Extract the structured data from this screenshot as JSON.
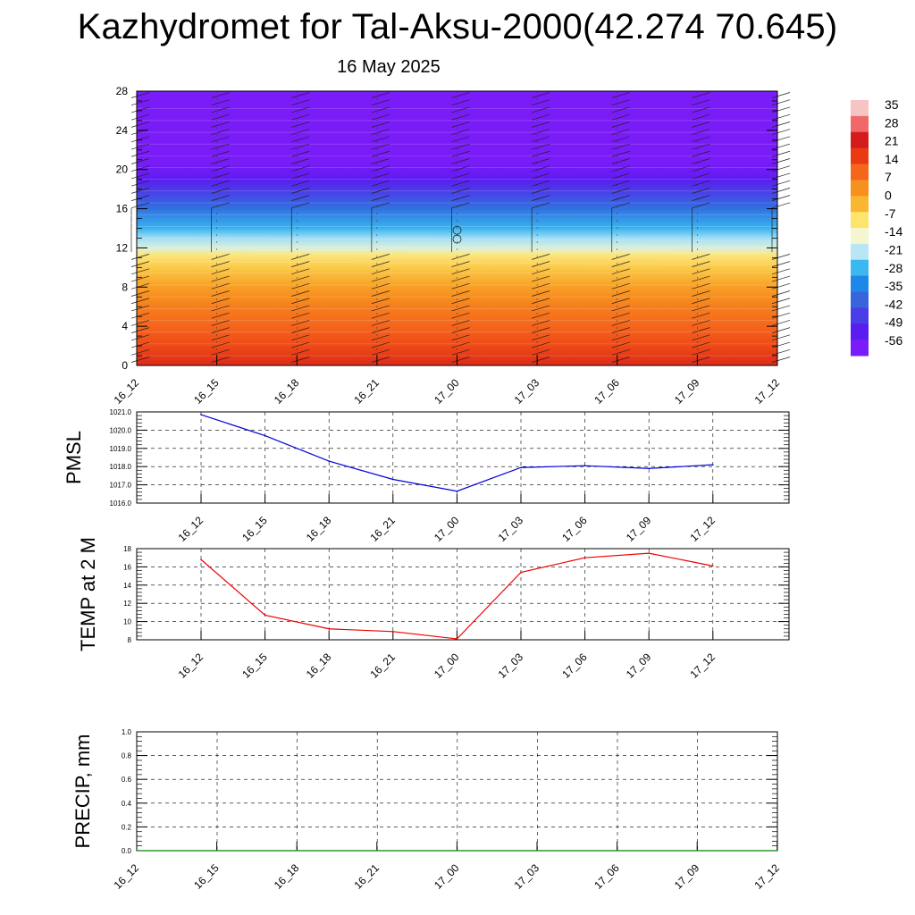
{
  "header": {
    "title": "Kazhydromet for Tal-Aksu-2000(42.274 70.645)",
    "subtitle": "16 May 2025"
  },
  "chart_data": [
    {
      "type": "heatmap",
      "title": "",
      "x_labels": [
        "16_12",
        "16_15",
        "16_18",
        "16_21",
        "17_00",
        "17_03",
        "17_06",
        "17_09",
        "17_12"
      ],
      "y_ticks": [
        "0",
        "4",
        "8",
        "12",
        "16",
        "20",
        "24",
        "28"
      ],
      "ylim": [
        0,
        28
      ],
      "levels": [
        {
          "y": 0,
          "value": 22
        },
        {
          "y": 2,
          "value": 16
        },
        {
          "y": 4,
          "value": 12
        },
        {
          "y": 6,
          "value": 8
        },
        {
          "y": 8,
          "value": 3
        },
        {
          "y": 10,
          "value": -4
        },
        {
          "y": 11.3,
          "value": -9
        },
        {
          "y": 12,
          "value": -17
        },
        {
          "y": 13,
          "value": -22
        },
        {
          "y": 14,
          "value": -28
        },
        {
          "y": 16,
          "value": -38
        },
        {
          "y": 18,
          "value": -48
        },
        {
          "y": 19,
          "value": -54
        },
        {
          "y": 20,
          "value": -58
        },
        {
          "y": 21,
          "value": -60
        },
        {
          "y": 28,
          "value": -60
        }
      ],
      "colorbar": {
        "labels": [
          "35",
          "28",
          "21",
          "14",
          "7",
          "0",
          "-7",
          "-14",
          "-21",
          "-28",
          "-35",
          "-42",
          "-49",
          "-56"
        ],
        "colors": [
          "#f7c4c4",
          "#f06868",
          "#d41c1c",
          "#ea3a14",
          "#f5661c",
          "#f7901e",
          "#f9b630",
          "#fde46a",
          "#f5f5cf",
          "#b8e6f5",
          "#3cb8f0",
          "#1e88e8",
          "#3a64dc",
          "#4a3ee8",
          "#5a1cf0",
          "#7a1cf8"
        ]
      },
      "grid": false
    },
    {
      "type": "line",
      "ylabel": "PMSL",
      "categories": [
        "16_12",
        "16_15",
        "16_18",
        "16_21",
        "17_00",
        "17_03",
        "17_06",
        "17_09",
        "17_12"
      ],
      "values": [
        1020.85,
        1019.7,
        1018.3,
        1017.3,
        1016.65,
        1017.95,
        1018.05,
        1017.9,
        1018.1
      ],
      "y_ticks": [
        "1016.0",
        "1017.0",
        "1018.0",
        "1019.0",
        "1020.0",
        "1021.0"
      ],
      "ylim": [
        1016.0,
        1021.0
      ],
      "color": "#0000dd",
      "grid": true
    },
    {
      "type": "line",
      "ylabel": "TEMP at 2 M",
      "categories": [
        "16_12",
        "16_15",
        "16_18",
        "16_21",
        "17_00",
        "17_03",
        "17_06",
        "17_09",
        "17_12"
      ],
      "values": [
        16.8,
        10.7,
        9.2,
        8.9,
        8.1,
        15.4,
        17.0,
        17.5,
        16.1
      ],
      "y_ticks": [
        "8",
        "10",
        "12",
        "14",
        "16",
        "18"
      ],
      "ylim": [
        8,
        18
      ],
      "color": "#ee0000",
      "grid": true
    },
    {
      "type": "bar",
      "ylabel": "PRECIP, mm",
      "categories": [
        "16_12",
        "16_15",
        "16_18",
        "16_21",
        "17_00",
        "17_03",
        "17_06",
        "17_09",
        "17_12"
      ],
      "values": [
        0,
        0,
        0,
        0,
        0,
        0,
        0,
        0,
        0
      ],
      "y_ticks": [
        "0.0",
        "0.2",
        "0.4",
        "0.6",
        "0.8",
        "1.0"
      ],
      "ylim": [
        0,
        1.0
      ],
      "color": "#008800",
      "grid": true
    }
  ]
}
